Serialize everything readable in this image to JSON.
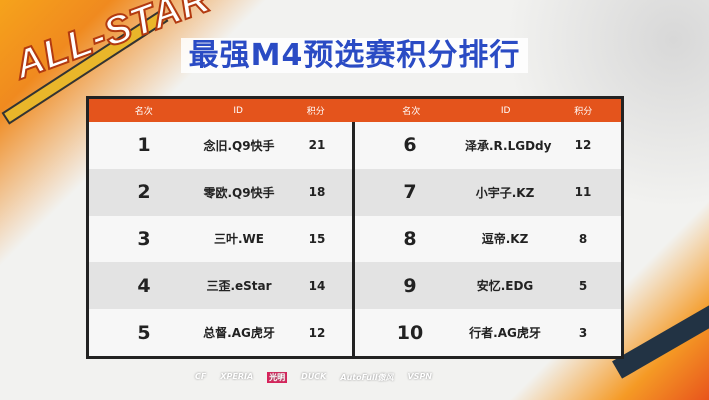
{
  "banner": "ALL-STAR",
  "title": "最强M4预选赛积分排行",
  "table": {
    "headers": [
      "名次",
      "ID",
      "积分"
    ],
    "left": [
      {
        "rank": "1",
        "id": "念旧.Q9快手",
        "points": "21"
      },
      {
        "rank": "2",
        "id": "零欧.Q9快手",
        "points": "18"
      },
      {
        "rank": "3",
        "id": "三叶.WE",
        "points": "15"
      },
      {
        "rank": "4",
        "id": "三歪.eStar",
        "points": "14"
      },
      {
        "rank": "5",
        "id": "总督.AG虎牙",
        "points": "12"
      }
    ],
    "right": [
      {
        "rank": "6",
        "id": "泽承.R.LGDdy",
        "points": "12"
      },
      {
        "rank": "7",
        "id": "小宇子.KZ",
        "points": "11"
      },
      {
        "rank": "8",
        "id": "逗帝.KZ",
        "points": "8"
      },
      {
        "rank": "9",
        "id": "安忆.EDG",
        "points": "5"
      },
      {
        "rank": "10",
        "id": "行者.AG虎牙",
        "points": "3"
      }
    ]
  },
  "sponsors": [
    "CF",
    "XPERIA",
    "光明",
    "DUCK",
    "AutoFull傲风",
    "VSPN"
  ],
  "colors": {
    "header": "#e4541c",
    "title": "#2a4bc4"
  }
}
